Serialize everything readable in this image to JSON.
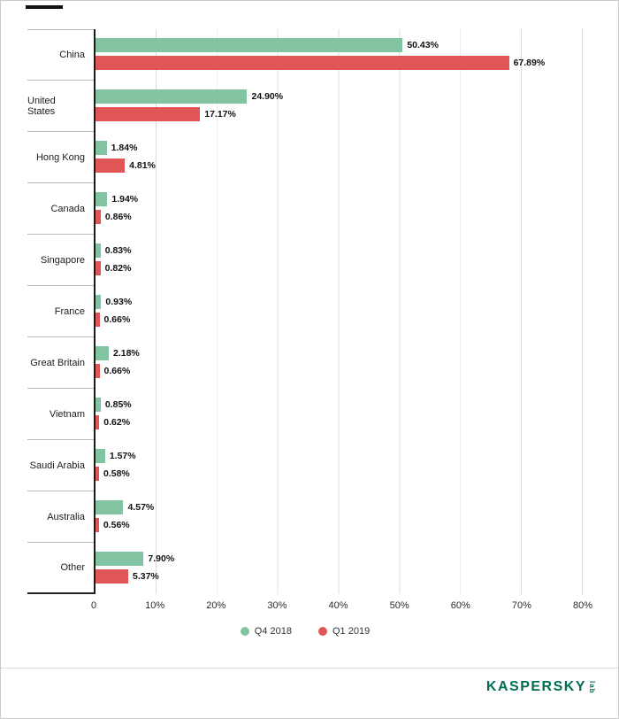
{
  "chart_data": {
    "type": "bar",
    "orientation": "horizontal",
    "title": "",
    "categories": [
      "China",
      "United States",
      "Hong Kong",
      "Canada",
      "Singapore",
      "France",
      "Great Britain",
      "Vietnam",
      "Saudi Arabia",
      "Australia",
      "Other"
    ],
    "series": [
      {
        "name": "Q4 2018",
        "color": "#82c3a2",
        "values": [
          50.43,
          24.9,
          1.84,
          1.94,
          0.83,
          0.93,
          2.18,
          0.85,
          1.57,
          4.57,
          7.9
        ]
      },
      {
        "name": "Q1 2019",
        "color": "#e05656",
        "values": [
          67.89,
          17.17,
          4.81,
          0.86,
          0.82,
          0.66,
          0.66,
          0.62,
          0.58,
          0.56,
          5.37
        ]
      }
    ],
    "xlim": [
      0,
      80
    ],
    "x_ticks": [
      "0",
      "10%",
      "20%",
      "30%",
      "40%",
      "50%",
      "60%",
      "70%",
      "80%"
    ],
    "grid": true,
    "legend_position": "bottom",
    "value_label_format": "0.00%"
  },
  "legend": {
    "items": [
      {
        "label": "Q4 2018",
        "color": "#82c3a2"
      },
      {
        "label": "Q1 2019",
        "color": "#e05656"
      }
    ]
  },
  "footer": {
    "brand": "KASPERSKY",
    "brand_sub": "lab"
  }
}
